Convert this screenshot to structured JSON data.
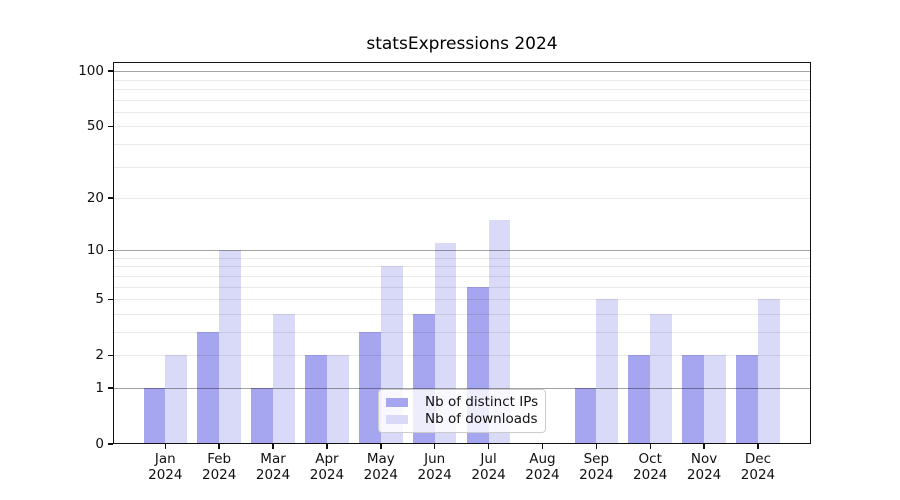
{
  "chart_data": {
    "type": "bar",
    "title": "statsExpressions 2024",
    "categories": [
      "Jan",
      "Feb",
      "Mar",
      "Apr",
      "May",
      "Jun",
      "Jul",
      "Aug",
      "Sep",
      "Oct",
      "Nov",
      "Dec"
    ],
    "year_label": "2024",
    "series": [
      {
        "name": "Nb of distinct IPs",
        "color": "#a5a5f0",
        "values": [
          1,
          3,
          1,
          2,
          3,
          4,
          6,
          0,
          1,
          2,
          2,
          2
        ]
      },
      {
        "name": "Nb of downloads",
        "color": "#d9d9f8",
        "values": [
          2,
          10,
          4,
          2,
          8,
          11,
          15,
          0,
          5,
          4,
          2,
          5
        ]
      }
    ],
    "xlabel": "",
    "ylabel": "",
    "y_scale": "log1p",
    "ylim": [
      0,
      112
    ],
    "y_ticks": [
      0,
      1,
      2,
      5,
      10,
      20,
      50,
      100
    ],
    "decade_gridlines": [
      1,
      10,
      100
    ],
    "minor_gridlines": [
      3,
      4,
      6,
      7,
      8,
      9,
      30,
      40,
      60,
      70,
      80,
      90
    ],
    "grid": true,
    "legend_position": "lower center"
  }
}
